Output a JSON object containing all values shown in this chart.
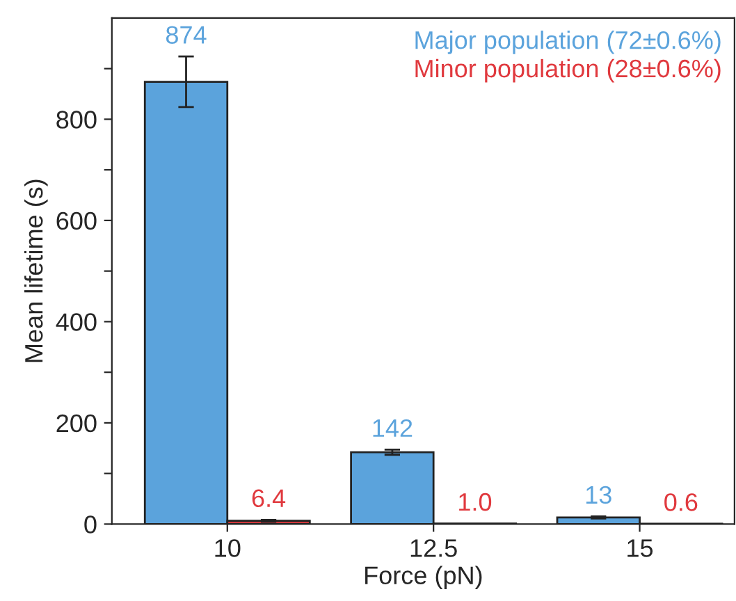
{
  "chart_data": {
    "type": "bar",
    "xlabel": "Force (pN)",
    "ylabel": "Mean lifetime (s)",
    "categories": [
      "10",
      "12.5",
      "15"
    ],
    "series": [
      {
        "name": "Major population (72±0.6%)",
        "color": "#5ba3dc",
        "values": [
          874,
          142,
          13
        ],
        "errors": [
          50,
          5,
          2
        ],
        "value_labels": [
          "874",
          "142",
          "13"
        ]
      },
      {
        "name": "Minor population (28±0.6%)",
        "color": "#e0393e",
        "values": [
          6.4,
          1.0,
          0.6
        ],
        "errors": [
          2,
          null,
          null
        ],
        "value_labels": [
          "6.4",
          "1.0",
          "0.6"
        ]
      }
    ],
    "ylim": [
      0,
      1000
    ],
    "yticks": [
      0,
      {
        "value": 100,
        "label": null
      },
      200,
      {
        "value": 300,
        "label": null
      },
      400,
      {
        "value": 500,
        "label": null
      },
      600,
      {
        "value": 700,
        "label": null
      },
      800,
      {
        "value": 900,
        "label": null
      }
    ],
    "grid": false,
    "legend": "top right"
  }
}
